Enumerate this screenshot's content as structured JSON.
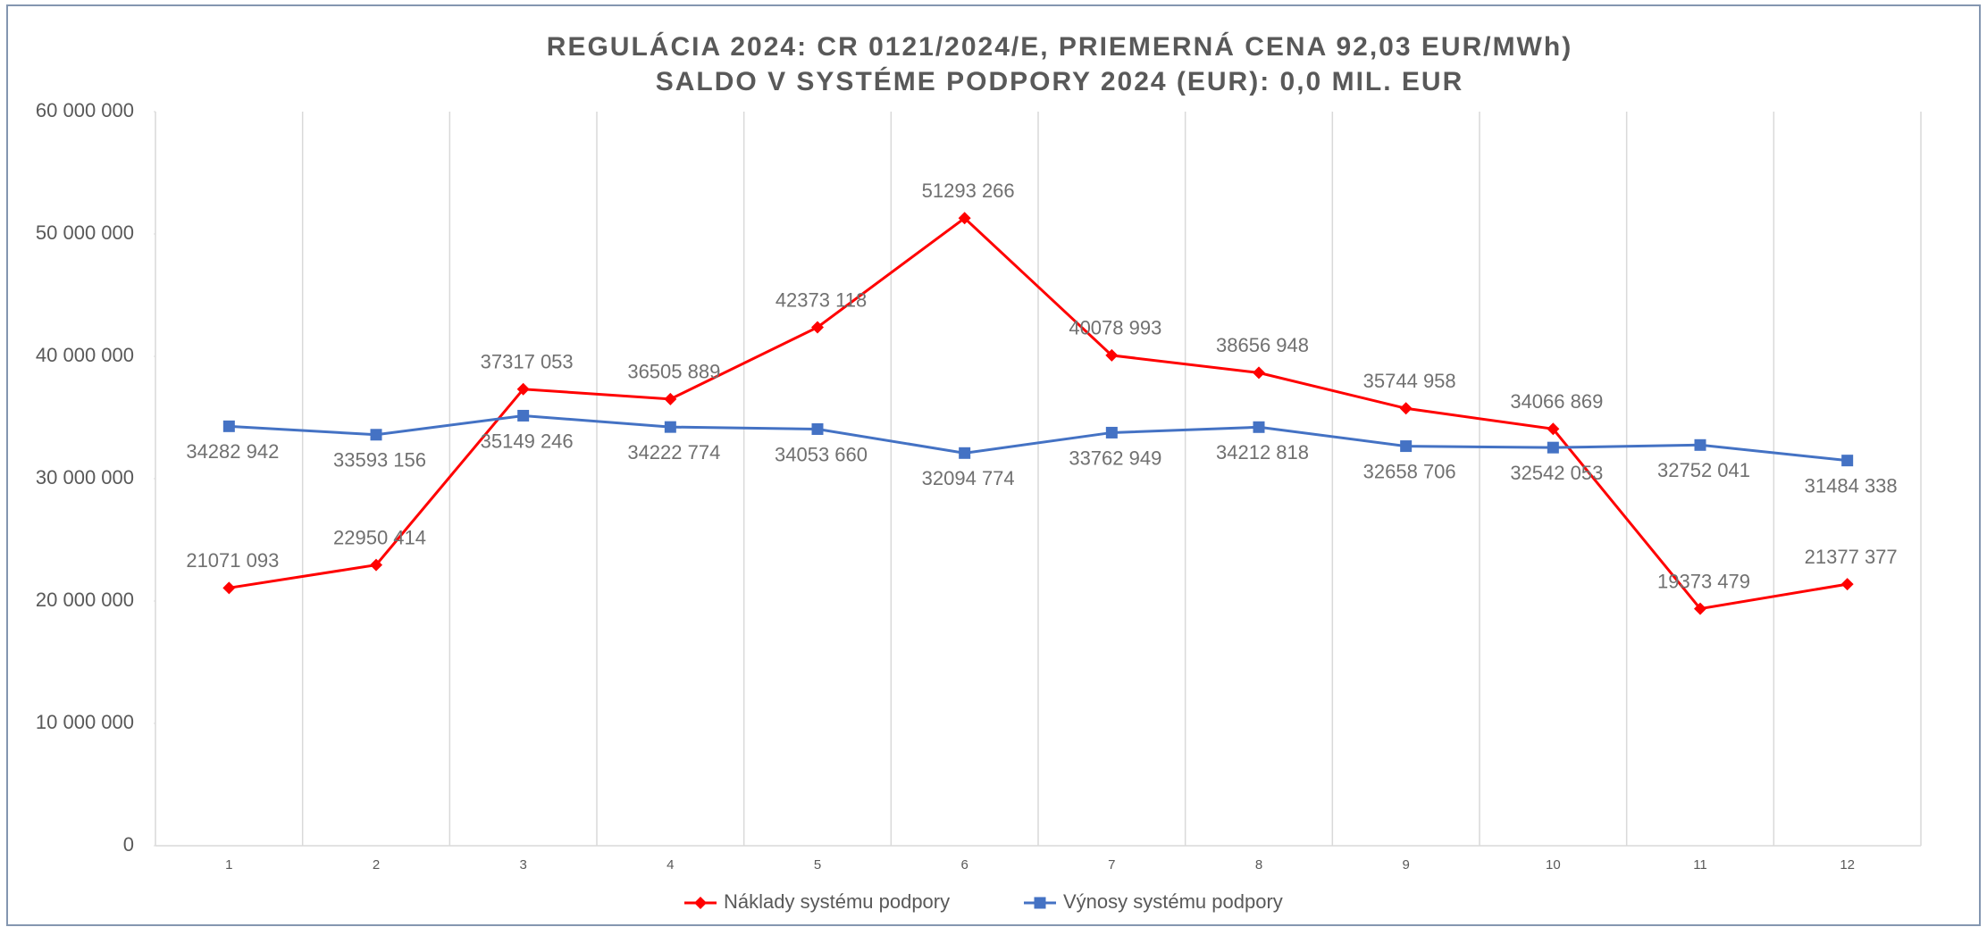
{
  "chart_data": {
    "type": "line",
    "title": "REGULÁCIA 2024: CR 0121/2024/E, PRIEMERNÁ CENA 92,03 EUR/MWh)",
    "subtitle": "SALDO V SYSTÉME PODPORY 2024 (EUR): 0,0 MIL. EUR",
    "categories": [
      "1",
      "2",
      "3",
      "4",
      "5",
      "6",
      "7",
      "8",
      "9",
      "10",
      "11",
      "12"
    ],
    "series": [
      {
        "name": "Náklady systému podpory",
        "color": "#ff0000",
        "marker": "diamond",
        "values": [
          21071093,
          22950414,
          37317053,
          36505889,
          42373118,
          51293266,
          40078993,
          38656948,
          35744958,
          34066869,
          19373479,
          21377377
        ],
        "value_labels": [
          "21071 093",
          "22950 414",
          "37317 053",
          "36505 889",
          "42373 118",
          "51293 266",
          "40078 993",
          "38656 948",
          "35744 958",
          "34066 869",
          "19373 479",
          "21377 377"
        ]
      },
      {
        "name": "Výnosy systému podpory",
        "color": "#4472c4",
        "marker": "square",
        "values": [
          34282942,
          33593156,
          35149246,
          34222774,
          34053660,
          32094774,
          33762949,
          34212818,
          32658706,
          32542053,
          32752041,
          31484338
        ],
        "value_labels": [
          "34282 942",
          "33593 156",
          "35149 246",
          "34222 774",
          "34053 660",
          "32094 774",
          "33762 949",
          "34212 818",
          "32658 706",
          "32542 053",
          "32752 041",
          "31484 338"
        ]
      }
    ],
    "ylim": [
      0,
      60000000
    ],
    "yticks": [
      0,
      {
        "value": 10000000,
        "label": "10 000 000"
      },
      {
        "value": 20000000,
        "label": "20 000 000"
      },
      {
        "value": 30000000,
        "label": "30 000 000"
      },
      {
        "value": 40000000,
        "label": "40 000 000"
      },
      {
        "value": 50000000,
        "label": "50 000 000"
      },
      {
        "value": 60000000,
        "label": "60 000 000"
      }
    ],
    "grid": "vertical",
    "legend": "bottom"
  }
}
